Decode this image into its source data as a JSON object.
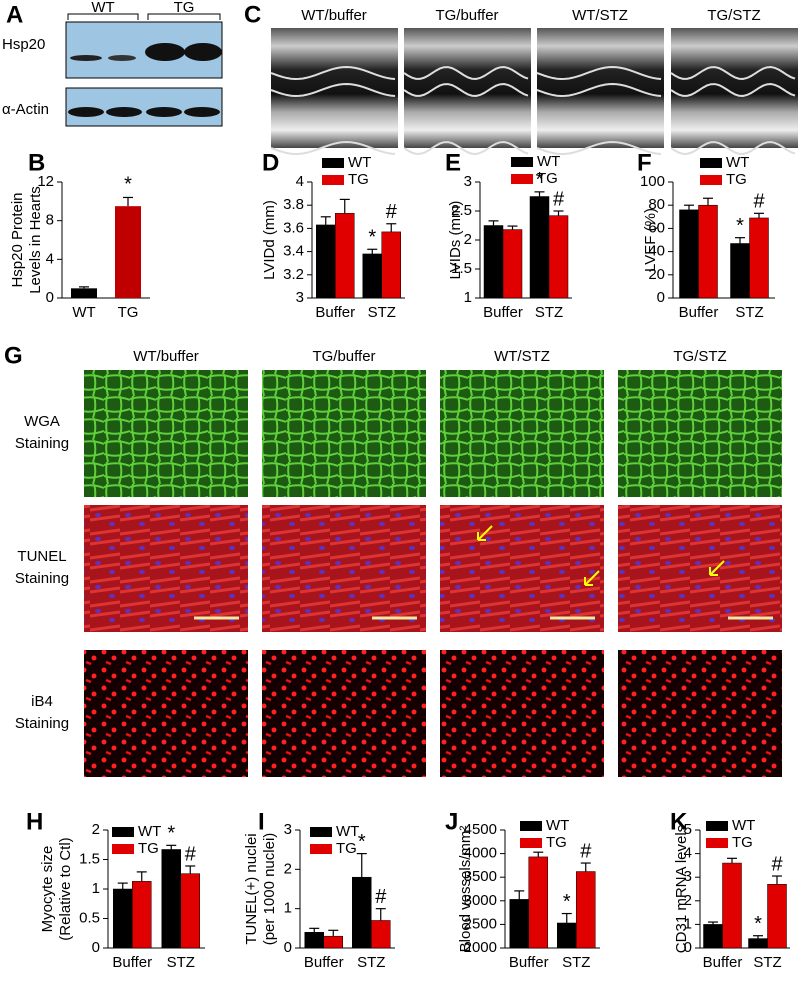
{
  "figure": {
    "A": {
      "label": "A",
      "groups": [
        "WT",
        "TG"
      ],
      "rows": [
        "Hsp20",
        "α-Actin"
      ]
    },
    "C": {
      "label": "C",
      "titles": [
        "WT/buffer",
        "TG/buffer",
        "WT/STZ",
        "TG/STZ"
      ]
    },
    "G": {
      "label": "G",
      "titles": [
        "WT/buffer",
        "TG/buffer",
        "WT/STZ",
        "TG/STZ"
      ],
      "rows": [
        [
          "WGA",
          "Staining"
        ],
        [
          "TUNEL",
          "Staining"
        ],
        [
          "iB4",
          "Staining"
        ]
      ]
    }
  },
  "chart_data": [
    {
      "type": "bar",
      "label": "B",
      "ylabel": [
        "Hsp20 Protein",
        "Levels in Hearts"
      ],
      "categories": [
        "WT",
        "TG"
      ],
      "values": [
        1.0,
        9.5
      ],
      "errors": [
        0.15,
        0.9
      ],
      "colors": [
        "#000000",
        "#c00000"
      ],
      "markers": [
        null,
        "*"
      ],
      "ylim": [
        0,
        12
      ],
      "yticks": [
        0,
        4,
        8,
        12
      ]
    },
    {
      "type": "grouped-bar",
      "label": "D",
      "ylabel": [
        "LVIDd (mm)"
      ],
      "categories": [
        "Buffer",
        "STZ"
      ],
      "series": [
        {
          "name": "WT",
          "color": "#000000",
          "values": [
            3.63,
            3.38
          ],
          "errors": [
            0.07,
            0.04
          ],
          "markers": [
            null,
            "*"
          ]
        },
        {
          "name": "TG",
          "color": "#e00000",
          "values": [
            3.73,
            3.57
          ],
          "errors": [
            0.12,
            0.07
          ],
          "markers": [
            null,
            "#"
          ]
        }
      ],
      "ylim": [
        3,
        4
      ],
      "yticks": [
        3,
        3.2,
        3.4,
        3.6,
        3.8,
        4
      ]
    },
    {
      "type": "grouped-bar",
      "label": "E",
      "ylabel": [
        "LVIDs (mm)"
      ],
      "categories": [
        "Buffer",
        "STZ"
      ],
      "series": [
        {
          "name": "WT",
          "color": "#000000",
          "values": [
            2.25,
            2.75
          ],
          "errors": [
            0.08,
            0.08
          ],
          "markers": [
            null,
            "*"
          ]
        },
        {
          "name": "TG",
          "color": "#e00000",
          "values": [
            2.18,
            2.42
          ],
          "errors": [
            0.06,
            0.08
          ],
          "markers": [
            null,
            "#"
          ]
        }
      ],
      "ylim": [
        1,
        3
      ],
      "yticks": [
        1,
        1.5,
        2,
        2.5,
        3
      ]
    },
    {
      "type": "grouped-bar",
      "label": "F",
      "ylabel": [
        "LVEF (%)"
      ],
      "categories": [
        "Buffer",
        "STZ"
      ],
      "series": [
        {
          "name": "WT",
          "color": "#000000",
          "values": [
            76,
            47
          ],
          "errors": [
            4,
            5
          ],
          "markers": [
            null,
            "*"
          ]
        },
        {
          "name": "TG",
          "color": "#e00000",
          "values": [
            80,
            69
          ],
          "errors": [
            6,
            4
          ],
          "markers": [
            null,
            "#"
          ]
        }
      ],
      "ylim": [
        0,
        100
      ],
      "yticks": [
        0,
        20,
        40,
        60,
        80,
        100
      ]
    },
    {
      "type": "grouped-bar",
      "label": "H",
      "ylabel": [
        "Myocyte size",
        "(Relative to Ctl)"
      ],
      "categories": [
        "Buffer",
        "STZ"
      ],
      "series": [
        {
          "name": "WT",
          "color": "#000000",
          "values": [
            1.0,
            1.67
          ],
          "errors": [
            0.1,
            0.07
          ],
          "markers": [
            null,
            "*"
          ]
        },
        {
          "name": "TG",
          "color": "#e00000",
          "values": [
            1.13,
            1.26
          ],
          "errors": [
            0.16,
            0.13
          ],
          "markers": [
            null,
            "#"
          ]
        }
      ],
      "ylim": [
        0,
        2
      ],
      "yticks": [
        0,
        0.5,
        1,
        1.5,
        2
      ]
    },
    {
      "type": "grouped-bar",
      "label": "I",
      "ylabel": [
        "TUNEL(+) nuclei",
        "(per 1000 nuclei)"
      ],
      "categories": [
        "Buffer",
        "STZ"
      ],
      "series": [
        {
          "name": "WT",
          "color": "#000000",
          "values": [
            0.4,
            1.8
          ],
          "errors": [
            0.1,
            0.6
          ],
          "markers": [
            null,
            "*"
          ]
        },
        {
          "name": "TG",
          "color": "#e00000",
          "values": [
            0.3,
            0.7
          ],
          "errors": [
            0.15,
            0.3
          ],
          "markers": [
            null,
            "#"
          ]
        }
      ],
      "ylim": [
        0,
        3
      ],
      "yticks": [
        0,
        1,
        2,
        3
      ]
    },
    {
      "type": "grouped-bar",
      "label": "J",
      "ylabel": [
        "Blood vessels/mm²"
      ],
      "categories": [
        "Buffer",
        "STZ"
      ],
      "series": [
        {
          "name": "WT",
          "color": "#000000",
          "values": [
            3030,
            2530
          ],
          "errors": [
            180,
            200
          ],
          "markers": [
            null,
            "*"
          ]
        },
        {
          "name": "TG",
          "color": "#e00000",
          "values": [
            3930,
            3620
          ],
          "errors": [
            100,
            180
          ],
          "markers": [
            null,
            "#"
          ]
        }
      ],
      "ylim": [
        2000,
        4500
      ],
      "yticks": [
        2000,
        2500,
        3000,
        3500,
        4000,
        4500
      ]
    },
    {
      "type": "grouped-bar",
      "label": "K",
      "ylabel": [
        "CD31 mRNA levels"
      ],
      "categories": [
        "Buffer",
        "STZ"
      ],
      "series": [
        {
          "name": "WT",
          "color": "#000000",
          "values": [
            1.0,
            0.4
          ],
          "errors": [
            0.1,
            0.12
          ],
          "markers": [
            null,
            "*"
          ]
        },
        {
          "name": "TG",
          "color": "#e00000",
          "values": [
            3.6,
            2.7
          ],
          "errors": [
            0.2,
            0.35
          ],
          "markers": [
            null,
            "#"
          ]
        }
      ],
      "ylim": [
        0,
        5
      ],
      "yticks": [
        0,
        1,
        2,
        3,
        4,
        5
      ]
    }
  ]
}
